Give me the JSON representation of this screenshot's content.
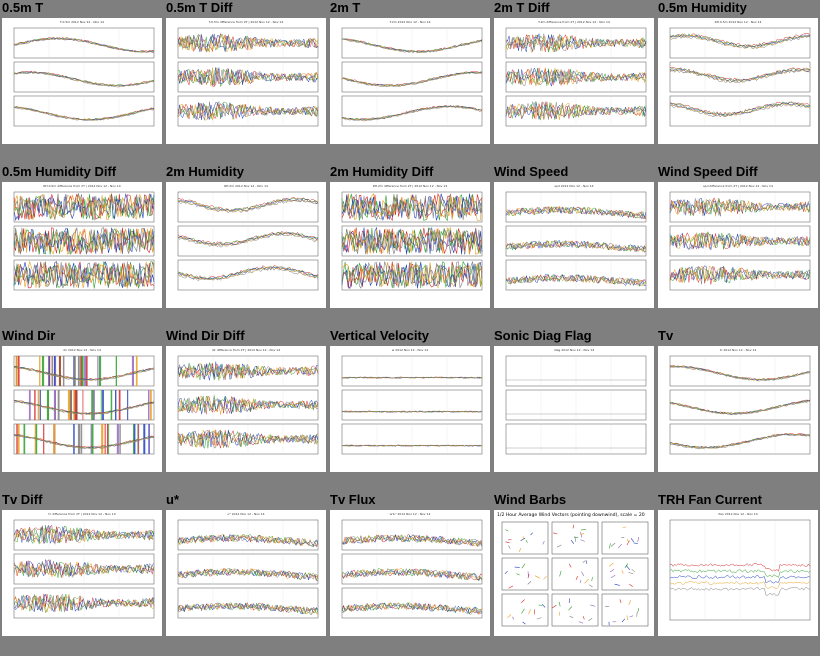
{
  "page": {
    "background": "#7f7f7f"
  },
  "series_colors": [
    "#d62728",
    "#2ca02c",
    "#1f3fbf",
    "#e8a020",
    "#7f7f7f",
    "#9467bd"
  ],
  "plots": [
    {
      "title": "0.5m T",
      "subtitle": "T.0.5m 2012 Nov 12 - Nov 14",
      "style": "smooth"
    },
    {
      "title": "0.5m T Diff",
      "subtitle": "T.0.5m difference from 2T | 2012 Nov 12 - Nov 14",
      "style": "noisy"
    },
    {
      "title": "2m T",
      "subtitle": "T.2m 2012 Nov 12 - Nov 14",
      "style": "smooth"
    },
    {
      "title": "2m T Diff",
      "subtitle": "T.2m difference from 2T | 2012 Nov 12 - Nov 14",
      "style": "noisy"
    },
    {
      "title": "0.5m Humidity",
      "subtitle": "RH.0.5m 2012 Nov 12 - Nov 14",
      "style": "hump"
    },
    {
      "title": "0.5m Humidity Diff",
      "subtitle": "RH.0.5m difference from 2T | 2012 Nov 12 - Nov 14",
      "style": "veryNoisy"
    },
    {
      "title": "2m Humidity",
      "subtitle": "RH.2m 2012 Nov 12 - Nov 14",
      "style": "hump"
    },
    {
      "title": "2m Humidity Diff",
      "subtitle": "RH.2m difference from 2T | 2012 Nov 12 - Nov 14",
      "style": "veryNoisy"
    },
    {
      "title": "Wind Speed",
      "subtitle": "spd 2012 Nov 12 - Nov 14",
      "style": "lowNoisy"
    },
    {
      "title": "Wind Speed Diff",
      "subtitle": "spd difference from 2T | 2012 Nov 12 - Nov 14",
      "style": "noisy"
    },
    {
      "title": "Wind Dir",
      "subtitle": "dir 2012 Nov 12 - Nov 14",
      "style": "bars"
    },
    {
      "title": "Wind Dir Diff",
      "subtitle": "dir difference from 2T | 2012 Nov 12 - Nov 14",
      "style": "noisy"
    },
    {
      "title": "Vertical Velocity",
      "subtitle": "w 2012 Nov 12 - Nov 14",
      "style": "flat"
    },
    {
      "title": "Sonic Diag Flag",
      "subtitle": "diag 2012 Nov 12 - Nov 14",
      "style": "empty"
    },
    {
      "title": "Tv",
      "subtitle": "tc 2012 Nov 12 - Nov 14",
      "style": "smooth"
    },
    {
      "title": "Tv Diff",
      "subtitle": "tc difference from 2T | 2012 Nov 12 - Nov 14",
      "style": "noisy"
    },
    {
      "title": "u*",
      "subtitle": "u* 2012 Nov 12 - Nov 14",
      "style": "lowNoisy"
    },
    {
      "title": "Tv Flux",
      "subtitle": "w'tc' 2012 Nov 12 - Nov 14",
      "style": "lowNoisy"
    },
    {
      "title": "Wind Barbs",
      "subtitle": "1/2 Hour Average Wind Vectors (pointing downwind), scale = 20",
      "style": "barbs"
    },
    {
      "title": "TRH Fan Current",
      "subtitle": "ifan 2012 Nov 12 - Nov 14",
      "style": "fan"
    }
  ]
}
